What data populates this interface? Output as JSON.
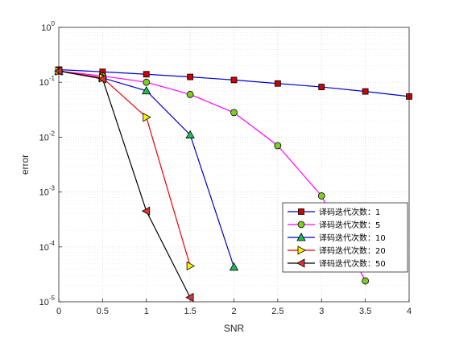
{
  "chart_data": {
    "type": "line",
    "title": "",
    "xlabel": "SNR",
    "ylabel": "error",
    "xlim": [
      0,
      4
    ],
    "ylim": [
      1e-05,
      1
    ],
    "yscale": "log",
    "grid": true,
    "minor_grid": true,
    "legend_position": "bottom-right",
    "x_ticks": [
      "0",
      "0.5",
      "1",
      "1.5",
      "2",
      "2.5",
      "3",
      "3.5",
      "4"
    ],
    "y_ticks": [
      {
        "base": "10",
        "exp": "-5"
      },
      {
        "base": "10",
        "exp": "-4"
      },
      {
        "base": "10",
        "exp": "-3"
      },
      {
        "base": "10",
        "exp": "-2"
      },
      {
        "base": "10",
        "exp": "-1"
      },
      {
        "base": "10",
        "exp": "0"
      }
    ],
    "series": [
      {
        "name": "译码迭代次数：1",
        "color": "#0000cc",
        "marker": "square",
        "marker_fill": "#cc0000",
        "x": [
          0,
          0.5,
          1,
          1.5,
          2,
          2.5,
          3,
          3.5,
          4
        ],
        "y": [
          0.17,
          0.155,
          0.14,
          0.125,
          0.11,
          0.095,
          0.082,
          0.068,
          0.055
        ]
      },
      {
        "name": "译码迭代次数：5",
        "color": "#ff00ff",
        "marker": "circle",
        "marker_fill": "#7fcc22",
        "x": [
          0,
          0.5,
          1,
          1.5,
          2,
          2.5,
          3,
          3.5
        ],
        "y": [
          0.16,
          0.13,
          0.1,
          0.06,
          0.028,
          0.007,
          0.00085,
          2.4e-05
        ]
      },
      {
        "name": "译码迭代次数：10",
        "color": "#0000cc",
        "marker": "triangle-up",
        "marker_fill": "#22bb55",
        "x": [
          0,
          0.5,
          1,
          1.5,
          2
        ],
        "y": [
          0.16,
          0.12,
          0.07,
          0.011,
          4.3e-05
        ]
      },
      {
        "name": "译码迭代次数：20",
        "color": "#ee0000",
        "marker": "triangle-right",
        "marker_fill": "#ffee00",
        "x": [
          0,
          0.5,
          1,
          1.5
        ],
        "y": [
          0.16,
          0.12,
          0.023,
          4.5e-05
        ]
      },
      {
        "name": "译码迭代次数：50",
        "color": "#000000",
        "marker": "triangle-left",
        "marker_fill": "#dd3333",
        "x": [
          0,
          0.5,
          1,
          1.5
        ],
        "y": [
          0.16,
          0.115,
          0.00045,
          1.2e-05
        ]
      }
    ]
  }
}
